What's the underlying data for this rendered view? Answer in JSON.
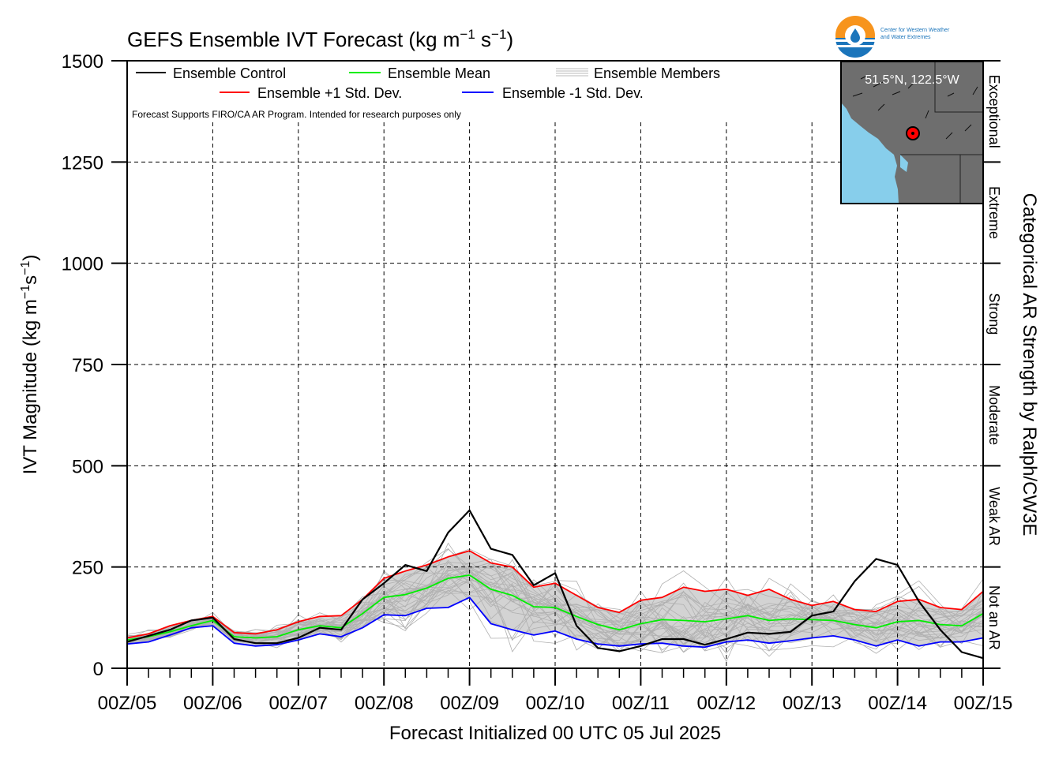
{
  "chart_data": {
    "type": "line",
    "title": "GEFS Ensemble IVT Forecast (kg m",
    "title_sup1": "−1",
    "title_mid": " s",
    "title_sup2": "−1",
    "title_end": ")",
    "ylabel": "IVT Magnitude (kg m",
    "ylabel_sup1": "−1",
    "ylabel_mid": "s",
    "ylabel_sup2": "−1",
    "ylabel_end": ")",
    "xlabel": "Forecast Initialized 00 UTC 05 Jul 2025",
    "right_label": "Categorical AR Strength by Ralph/CW3E",
    "ylim": [
      0,
      1500
    ],
    "xlim": [
      0,
      240
    ],
    "yticks": [
      "0",
      "250",
      "500",
      "750",
      "1000",
      "1250",
      "1500"
    ],
    "ytick_values": [
      0,
      250,
      500,
      750,
      1000,
      1250,
      1500
    ],
    "xticks": [
      "00Z/05",
      "00Z/06",
      "00Z/07",
      "00Z/08",
      "00Z/09",
      "00Z/10",
      "00Z/11",
      "00Z/12",
      "00Z/13",
      "00Z/14",
      "00Z/15"
    ],
    "categories": [
      {
        "label": "Not an AR",
        "from": 0,
        "to": 250
      },
      {
        "label": "Weak AR",
        "from": 250,
        "to": 500
      },
      {
        "label": "Moderate",
        "from": 500,
        "to": 750
      },
      {
        "label": "Strong",
        "from": 750,
        "to": 1000
      },
      {
        "label": "Extreme",
        "from": 1000,
        "to": 1250
      },
      {
        "label": "Exceptional",
        "from": 1250,
        "to": 1500
      }
    ],
    "note": "Forecast Supports FIRO/CA AR Program. Intended for research purposes only",
    "legend": {
      "control": "Ensemble Control",
      "mean": "Ensemble Mean",
      "members": "Ensemble Members",
      "plus": "Ensemble +1 Std. Dev.",
      "minus": "Ensemble -1 Std. Dev."
    },
    "series": [
      {
        "name": "Ensemble Control",
        "color": "#000000",
        "x": [
          0,
          6,
          12,
          18,
          24,
          30,
          36,
          42,
          48,
          54,
          60,
          66,
          72,
          78,
          84,
          90,
          96,
          102,
          108,
          114,
          120,
          126,
          132,
          138,
          144,
          150,
          156,
          162,
          168,
          174,
          180,
          186,
          192,
          198,
          204,
          210,
          216,
          222,
          228,
          234,
          240
        ],
        "values": [
          65,
          80,
          95,
          118,
          125,
          72,
          62,
          62,
          75,
          100,
          95,
          170,
          210,
          255,
          240,
          335,
          390,
          295,
          280,
          205,
          235,
          105,
          50,
          42,
          55,
          72,
          72,
          58,
          72,
          88,
          85,
          90,
          130,
          140,
          215,
          270,
          255,
          165,
          95,
          40,
          25
        ]
      },
      {
        "name": "Ensemble Mean",
        "color": "#00ee00",
        "x": [
          0,
          6,
          12,
          18,
          24,
          30,
          36,
          42,
          48,
          54,
          60,
          66,
          72,
          78,
          84,
          90,
          96,
          102,
          108,
          114,
          120,
          126,
          132,
          138,
          144,
          150,
          156,
          162,
          168,
          174,
          180,
          186,
          192,
          198,
          204,
          210,
          216,
          222,
          228,
          234,
          240
        ],
        "values": [
          70,
          78,
          90,
          105,
          118,
          78,
          75,
          78,
          95,
          105,
          100,
          135,
          175,
          182,
          198,
          222,
          230,
          195,
          180,
          152,
          150,
          128,
          108,
          95,
          110,
          120,
          118,
          115,
          122,
          130,
          118,
          122,
          120,
          118,
          108,
          100,
          115,
          118,
          108,
          105,
          135
        ]
      },
      {
        "name": "Ensemble +1 Std. Dev.",
        "color": "#ff0000",
        "x": [
          0,
          6,
          12,
          18,
          24,
          30,
          36,
          42,
          48,
          54,
          60,
          66,
          72,
          78,
          84,
          90,
          96,
          102,
          108,
          114,
          120,
          126,
          132,
          138,
          144,
          150,
          156,
          162,
          168,
          174,
          180,
          186,
          192,
          198,
          204,
          210,
          216,
          222,
          228,
          234,
          240
        ],
        "values": [
          75,
          85,
          105,
          118,
          128,
          88,
          85,
          95,
          115,
          128,
          130,
          170,
          222,
          240,
          255,
          275,
          290,
          260,
          250,
          200,
          210,
          180,
          150,
          138,
          168,
          175,
          200,
          190,
          195,
          180,
          195,
          170,
          155,
          165,
          145,
          140,
          165,
          170,
          150,
          145,
          190
        ]
      },
      {
        "name": "Ensemble -1 Std. Dev.",
        "color": "#0000ff",
        "x": [
          0,
          6,
          12,
          18,
          24,
          30,
          36,
          42,
          48,
          54,
          60,
          66,
          72,
          78,
          84,
          90,
          96,
          102,
          108,
          114,
          120,
          126,
          132,
          138,
          144,
          150,
          156,
          162,
          168,
          174,
          180,
          186,
          192,
          198,
          204,
          210,
          216,
          222,
          228,
          234,
          240
        ],
        "values": [
          60,
          65,
          82,
          100,
          105,
          62,
          55,
          58,
          70,
          85,
          78,
          100,
          132,
          130,
          148,
          150,
          175,
          110,
          95,
          82,
          92,
          72,
          60,
          55,
          60,
          62,
          55,
          52,
          65,
          70,
          62,
          68,
          75,
          80,
          70,
          55,
          70,
          55,
          65,
          65,
          75
        ]
      }
    ]
  },
  "map": {
    "coords": "51.5°N, 122.5°W",
    "land_color": "#6e6e6e",
    "water_color": "#87ceeb"
  },
  "logo": {
    "line1": "Center for Western Weather",
    "line2": "and Water Extremes"
  }
}
